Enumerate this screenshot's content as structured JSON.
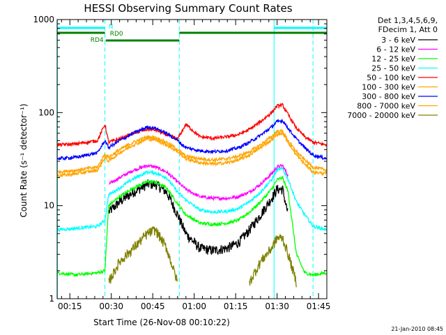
{
  "chart_data": {
    "type": "line",
    "title": "HESSI Observing Summary Count Rates",
    "xlabel": "Start Time (26-Nov-08 00:10:22)",
    "ylabel": "Count Rate (s⁻¹ detector⁻¹)",
    "y_scale": "log",
    "ylim": [
      1,
      1000
    ],
    "xlim_minutes": [
      10.4,
      108
    ],
    "x_tick_labels": [
      "00:15",
      "00:30",
      "00:45",
      "01:00",
      "01:15",
      "01:30",
      "01:45"
    ],
    "x_tick_minutes": [
      15,
      30,
      45,
      60,
      75,
      90,
      105
    ],
    "y_tick_labels": [
      "1",
      "10",
      "100",
      "1000"
    ],
    "y_tick_values": [
      1,
      10,
      100,
      1000
    ],
    "legend_header": [
      "Det 1,3,4,5,6,9,",
      "FDecim 1, Att 0"
    ],
    "legend_placement": "right",
    "footer": "21-Jan-2010 08:45",
    "flags": {
      "N": {
        "label": "N",
        "color": "#00ffff"
      },
      "RD0": {
        "label": "RD0",
        "color": "#008000"
      },
      "RD4": {
        "label": "RD4",
        "color": "#008000"
      }
    },
    "event_markers": {
      "dashed_minutes": [
        27.7,
        54.6,
        103
      ],
      "solid_minutes": [
        10.5,
        88.9
      ],
      "color": "#00ffff"
    },
    "series": [
      {
        "name": "3 - 6 keV",
        "color": "#000000",
        "x": [
          10.4,
          17,
          25,
          27.7,
          29,
          33,
          38,
          43,
          46,
          50,
          54,
          57,
          62,
          67,
          72,
          76,
          80,
          84,
          88,
          90,
          92,
          94,
          97,
          100,
          103,
          108
        ],
        "y": [
          null,
          null,
          null,
          null,
          8.5,
          11,
          14,
          17,
          17,
          14,
          8,
          5,
          3.5,
          3.3,
          3.5,
          4,
          5.5,
          8,
          12,
          15,
          15,
          8,
          null,
          null,
          null,
          null
        ]
      },
      {
        "name": "6 - 12 keV",
        "color": "#ff00ff",
        "x": [
          10.4,
          17,
          25,
          27.7,
          29,
          33,
          38,
          43,
          46,
          50,
          54,
          57,
          62,
          67,
          72,
          76,
          80,
          84,
          88,
          90,
          92,
          94,
          97,
          100,
          103,
          108
        ],
        "y": [
          null,
          null,
          null,
          null,
          17,
          20,
          24,
          27,
          26,
          23,
          18,
          15,
          12.5,
          12,
          12,
          12.5,
          14,
          17,
          22,
          26,
          27,
          21,
          null,
          null,
          null,
          null
        ]
      },
      {
        "name": "12 - 25 keV",
        "color": "#00ff00",
        "x": [
          10.4,
          17,
          25,
          27.7,
          29,
          33,
          38,
          43,
          46,
          50,
          54,
          57,
          62,
          67,
          72,
          76,
          80,
          84,
          88,
          90,
          92,
          94,
          97,
          100,
          103,
          108
        ],
        "y": [
          1.9,
          1.8,
          1.9,
          2,
          10,
          12.5,
          15.5,
          18,
          18,
          15.5,
          10.5,
          8,
          6.5,
          6.3,
          6.5,
          7,
          8.5,
          11,
          15,
          19,
          20,
          14,
          3,
          1.9,
          1.8,
          1.9
        ]
      },
      {
        "name": "25 - 50 keV",
        "color": "#00ffff",
        "x": [
          10.4,
          17,
          25,
          27.7,
          29,
          33,
          38,
          43,
          46,
          50,
          54,
          57,
          62,
          67,
          72,
          76,
          80,
          84,
          88,
          90,
          92,
          94,
          97,
          100,
          103,
          108
        ],
        "y": [
          5.5,
          5.7,
          6,
          7,
          13,
          15.5,
          19.5,
          23,
          22.5,
          20,
          14,
          11.5,
          9,
          8.5,
          8.7,
          9.3,
          11,
          14,
          19,
          24,
          25,
          19,
          11,
          8,
          6,
          5.5
        ]
      },
      {
        "name": "50 - 100 keV",
        "color": "#ff0000",
        "x": [
          10.4,
          17,
          25,
          27.7,
          29,
          33,
          38,
          43,
          46,
          50,
          54,
          57,
          62,
          67,
          72,
          76,
          80,
          84,
          88,
          90,
          92,
          94,
          97,
          100,
          103,
          108
        ],
        "y": [
          45,
          46,
          50,
          75,
          48,
          52,
          60,
          66,
          65,
          58,
          52,
          75,
          55,
          53,
          55,
          58,
          66,
          80,
          100,
          118,
          120,
          95,
          68,
          55,
          48,
          45
        ]
      },
      {
        "name": "100 - 300 keV",
        "color": "#ffa500",
        "x": [
          10.4,
          17,
          25,
          27.7,
          29,
          33,
          38,
          43,
          46,
          50,
          54,
          57,
          62,
          67,
          72,
          76,
          80,
          84,
          88,
          90,
          92,
          94,
          97,
          100,
          103,
          108
        ],
        "y": [
          23,
          24,
          26,
          36,
          33,
          40,
          48,
          55,
          54,
          48,
          40,
          34,
          32,
          31,
          32,
          34,
          38,
          45,
          55,
          63,
          63,
          50,
          38,
          31,
          26,
          24
        ]
      },
      {
        "name": "300 - 800 keV",
        "color": "#0000ff",
        "x": [
          10.4,
          17,
          25,
          27.7,
          29,
          33,
          38,
          43,
          46,
          50,
          54,
          57,
          62,
          67,
          72,
          76,
          80,
          84,
          88,
          90,
          92,
          94,
          97,
          100,
          103,
          108
        ],
        "y": [
          32,
          33,
          37,
          50,
          42,
          50,
          60,
          70,
          68,
          60,
          50,
          42,
          39,
          38,
          39,
          42,
          48,
          57,
          70,
          80,
          82,
          68,
          52,
          42,
          35,
          32
        ]
      },
      {
        "name": "800 - 7000 keV",
        "color": "#ffa500",
        "x": [
          10.4,
          17,
          25,
          27.7,
          29,
          33,
          38,
          43,
          46,
          50,
          54,
          57,
          62,
          67,
          72,
          76,
          80,
          84,
          88,
          90,
          92,
          94,
          97,
          100,
          103,
          108
        ],
        "y": [
          21,
          22,
          24,
          33,
          30,
          37,
          45,
          52,
          51,
          45,
          38,
          32,
          29,
          28,
          29,
          31,
          35,
          42,
          51,
          58,
          60,
          48,
          35,
          28,
          23,
          22
        ]
      },
      {
        "name": "7000 - 20000 keV",
        "color": "#808000",
        "x": [
          10.4,
          17,
          25,
          27.7,
          29,
          33,
          38,
          43,
          46,
          50,
          54,
          57,
          62,
          67,
          72,
          76,
          80,
          84,
          88,
          90,
          92,
          94,
          97,
          100,
          103,
          108
        ],
        "y": [
          null,
          null,
          null,
          null,
          1.5,
          2.5,
          3.5,
          5,
          5.5,
          3.5,
          1.5,
          null,
          null,
          null,
          null,
          null,
          1.5,
          2.5,
          3.5,
          4.5,
          4.5,
          3,
          1.5,
          null,
          null,
          null
        ]
      }
    ]
  }
}
